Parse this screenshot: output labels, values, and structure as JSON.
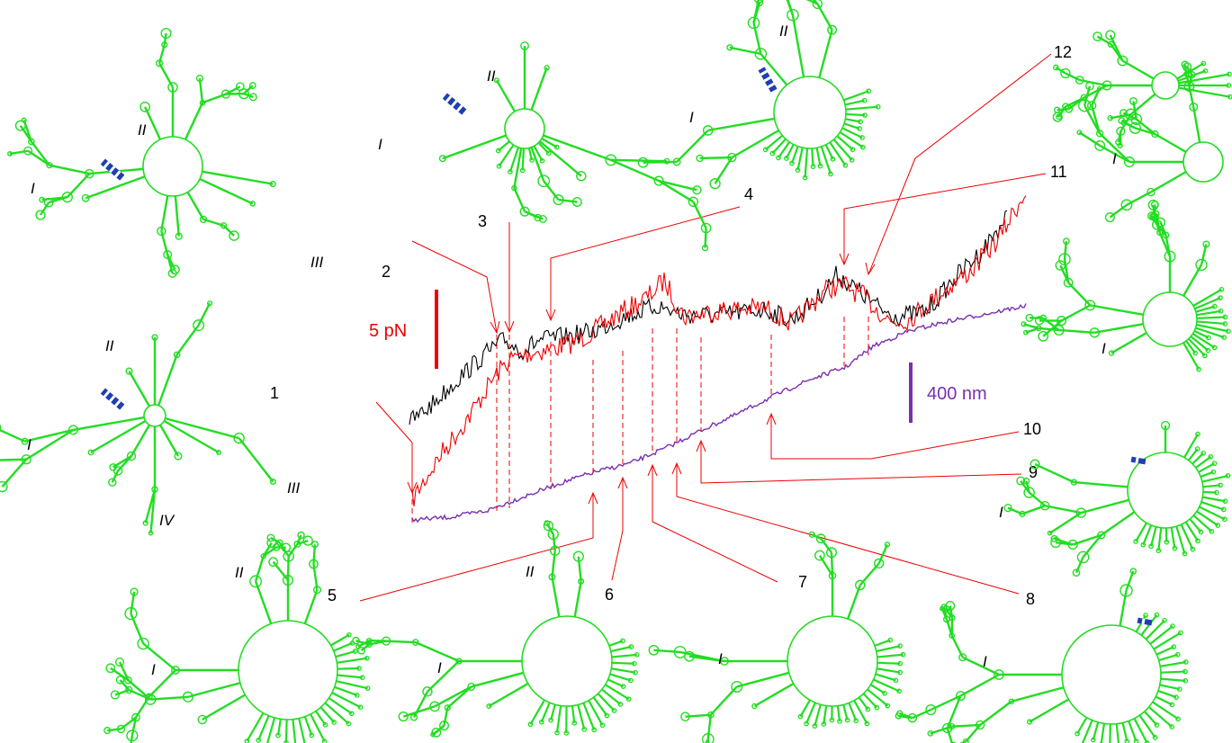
{
  "colors": {
    "structure": "#22dd22",
    "force_trace": "#ee0000",
    "force_trace_2": "#000000",
    "extension_trace": "#7a2fb0",
    "annotation": "#ee0000",
    "helix_marker": "#1f3fb0"
  },
  "scale_bars": {
    "force_label": "5 pN",
    "extension_label": "400 nm"
  },
  "event_labels": [
    "1",
    "2",
    "3",
    "4",
    "5",
    "6",
    "7",
    "8",
    "9",
    "10",
    "11",
    "12"
  ],
  "domain_labels": {
    "structure_1": [
      "I",
      "II",
      "III",
      "IV"
    ],
    "structure_2": [
      "I",
      "II",
      "III"
    ],
    "structure_3": [
      "I",
      "II"
    ],
    "structure_4": [
      "I",
      "II"
    ],
    "structure_5": [
      "I",
      "II"
    ],
    "structure_6": [
      "I",
      "II"
    ],
    "structure_7": [
      "I"
    ],
    "structure_8": [
      "I"
    ],
    "structure_9": [
      "I"
    ],
    "structure_10": [
      "I"
    ],
    "structure_11": [
      "I"
    ],
    "structure_12": []
  }
}
